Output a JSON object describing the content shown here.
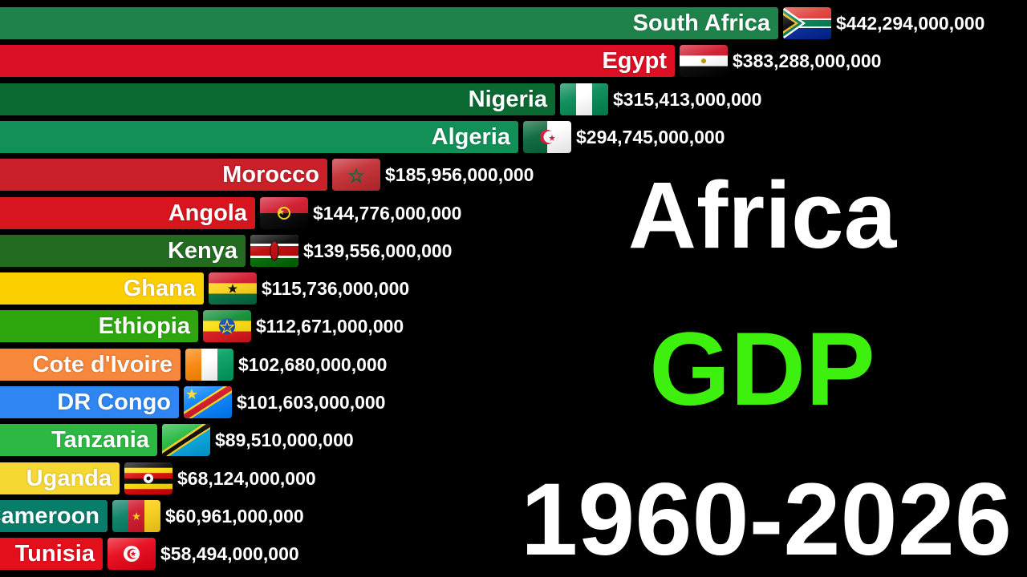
{
  "title": {
    "line1": "Africa",
    "line2": "GDP",
    "line3": "1960-2026"
  },
  "colors": {
    "gdp_title": "#3ef00e",
    "background": "#000000"
  },
  "chart_data": {
    "type": "bar",
    "orientation": "horizontal",
    "title": "Africa GDP 1960-2026",
    "unit": "USD",
    "categories": [
      "South Africa",
      "Egypt",
      "Nigeria",
      "Algeria",
      "Morocco",
      "Angola",
      "Kenya",
      "Ghana",
      "Ethiopia",
      "Cote d'Ivoire",
      "DR Congo",
      "Tanzania",
      "Uganda",
      "Cameroon",
      "Tunisia"
    ],
    "values": [
      442294000000,
      383288000000,
      315413000000,
      294745000000,
      185956000000,
      144776000000,
      139556000000,
      115736000000,
      112671000000,
      102680000000,
      101603000000,
      89510000000,
      68124000000,
      60961000000,
      58494000000
    ],
    "value_labels": [
      "$442,294,000,000",
      "$383,288,000,000",
      "$315,413,000,000",
      "$294,745,000,000",
      "$185,956,000,000",
      "$144,776,000,000",
      "$139,556,000,000",
      "$115,736,000,000",
      "$112,671,000,000",
      "$102,680,000,000",
      "$101,603,000,000",
      "$89,510,000,000",
      "$68,124,000,000",
      "$60,961,000,000",
      "$58,494,000,000"
    ],
    "bar_colors": [
      "#1f824a",
      "#dc0f24",
      "#0b6a32",
      "#138f58",
      "#c9202a",
      "#d8141e",
      "#246b22",
      "#fccf00",
      "#2ea70f",
      "#f7873a",
      "#2f86f2",
      "#2db843",
      "#f6d833",
      "#087d69",
      "#e2101a"
    ],
    "flag_icons": [
      "flag-south-africa",
      "flag-egypt",
      "flag-nigeria",
      "flag-algeria",
      "flag-morocco",
      "flag-angola",
      "flag-kenya",
      "flag-ghana",
      "flag-ethiopia",
      "flag-cote-divoire",
      "flag-dr-congo",
      "flag-tanzania",
      "flag-uganda",
      "flag-cameroon",
      "flag-tunisia"
    ],
    "xlim": [
      0,
      442294000000
    ],
    "grid": false,
    "legend": "none"
  }
}
